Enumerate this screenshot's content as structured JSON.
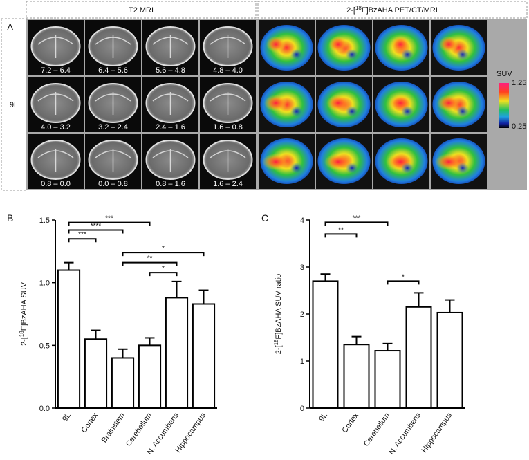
{
  "panel_a": {
    "panel": "A",
    "row_label": "9L",
    "headers": [
      "T2 MRI",
      {
        "pre": "2-[",
        "sup": "18",
        "post": "F]BzAHA PET/CT/MRI"
      }
    ],
    "slices": [
      "7.2 – 6.4",
      "6.4 – 5.6",
      "5.6 – 4.8",
      "4.8 – 4.0",
      "4.0 – 3.2",
      "3.2 – 2.4",
      "2.4 – 1.6",
      "1.6 – 0.8",
      "0.8 – 0.0",
      "0.0 – 0.8",
      "0.8 – 1.6",
      "1.6 – 2.4"
    ],
    "colorbar": {
      "title": "SUV",
      "max": 1.25,
      "min": 0.25
    }
  },
  "chart_data": [
    {
      "type": "bar",
      "panel": "B",
      "ylabel": {
        "pre": "2-[",
        "sup": "18",
        "post": "F]BzAHA SUV"
      },
      "categories": [
        "9L",
        "Cortex",
        "Brainstem",
        "Cerebellum",
        "N. Accumbens",
        "Hippocampus"
      ],
      "values": [
        1.1,
        0.55,
        0.4,
        0.5,
        0.88,
        0.83
      ],
      "errors": [
        0.06,
        0.07,
        0.07,
        0.06,
        0.13,
        0.11
      ],
      "color": "#ffffff",
      "ylim": [
        0,
        1.5
      ],
      "yticks": [
        {
          "value": 0,
          "label": "0.0"
        },
        {
          "value": 0.5,
          "label": "0.5"
        },
        {
          "value": 1,
          "label": "1.0"
        },
        {
          "value": 1.5,
          "label": "1.5"
        }
      ],
      "brackets": [
        {
          "from": "9L",
          "to": "Cortex",
          "y": 1.35,
          "label": "***"
        },
        {
          "from": "9L",
          "to": "Brainstem",
          "y": 1.42,
          "label": "****"
        },
        {
          "from": "9L",
          "to": "Cerebellum",
          "y": 1.48,
          "label": "***"
        },
        {
          "from": "Brainstem",
          "to": "Hippocampus",
          "y": 1.24,
          "label": "*"
        },
        {
          "from": "Brainstem",
          "to": "N. Accumbens",
          "y": 1.16,
          "label": "**"
        },
        {
          "from": "Cerebellum",
          "to": "N. Accumbens",
          "y": 1.08,
          "label": "*"
        }
      ]
    },
    {
      "type": "bar",
      "panel": "C",
      "ylabel": {
        "pre": "2-[",
        "sup": "18",
        "post": "F]BzAHA SUV ratio"
      },
      "categories": [
        "9L",
        "Cortex",
        "Cerebellum",
        "N. Accumbens",
        "Hippocampus"
      ],
      "values": [
        2.7,
        1.35,
        1.22,
        2.15,
        2.03
      ],
      "errors": [
        0.15,
        0.17,
        0.15,
        0.3,
        0.27
      ],
      "color": "#ffffff",
      "ylim": [
        0,
        4
      ],
      "yticks": [
        0,
        1,
        2,
        3,
        4
      ],
      "brackets": [
        {
          "from": "9L",
          "to": "Cortex",
          "y": 3.7,
          "label": "**"
        },
        {
          "from": "9L",
          "to": "Cerebellum",
          "y": 3.95,
          "label": "***"
        },
        {
          "from": "Cerebellum",
          "to": "N. Accumbens",
          "y": 2.7,
          "label": "*"
        }
      ]
    }
  ]
}
